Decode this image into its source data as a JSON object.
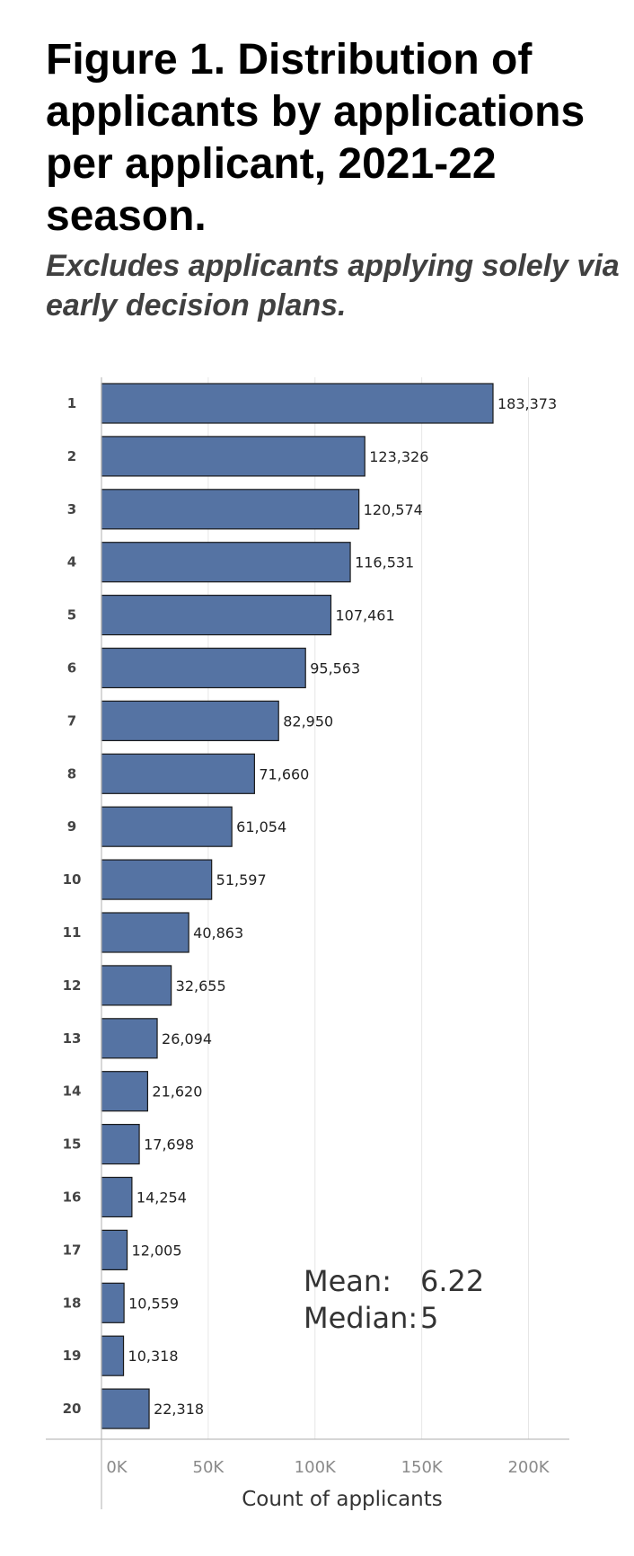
{
  "chart_data": {
    "type": "bar",
    "orientation": "horizontal",
    "title": "Figure 1. Distribution of applicants by applications per applicant, 2021-22 season.",
    "subtitle": "Excludes applicants applying solely via early decision plans.",
    "xlabel": "Count of applicants",
    "ylabel": "",
    "categories": [
      "1",
      "2",
      "3",
      "4",
      "5",
      "6",
      "7",
      "8",
      "9",
      "10",
      "11",
      "12",
      "13",
      "14",
      "15",
      "16",
      "17",
      "18",
      "19",
      "20"
    ],
    "values": [
      183373,
      123326,
      120574,
      116531,
      107461,
      95563,
      82950,
      71660,
      61054,
      51597,
      40863,
      32655,
      26094,
      21620,
      17698,
      14254,
      12005,
      10559,
      10318,
      22318
    ],
    "value_labels": [
      "183,373",
      "123,326",
      "120,574",
      "116,531",
      "107,461",
      "95,563",
      "82,950",
      "71,660",
      "61,054",
      "51,597",
      "40,863",
      "32,655",
      "26,094",
      "21,620",
      "17,698",
      "14,254",
      "12,005",
      "10,559",
      "10,318",
      "22,318"
    ],
    "xticks": [
      0,
      50000,
      100000,
      150000,
      200000
    ],
    "xtick_labels": [
      "0K",
      "50K",
      "100K",
      "150K",
      "200K"
    ],
    "xlim": [
      -25000,
      225000
    ],
    "grid": true,
    "bar_color": "#5573a3",
    "bar_edge_color": "#1a1a1a",
    "annotations": [
      {
        "label": "Mean:",
        "value": "6.22"
      },
      {
        "label": "Median:",
        "value": "5"
      }
    ]
  }
}
